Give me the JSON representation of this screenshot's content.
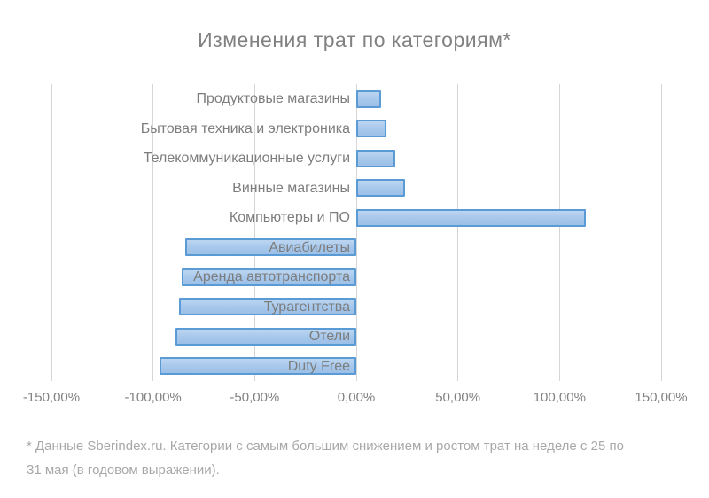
{
  "title": "Изменения трат по категориям*",
  "footnote": "* Данные Sberindex.ru. Категории с самым большим снижением и ростом трат на неделе с 25 по\n31 мая (в годовом выражении).",
  "colors": {
    "bar_fill": "#a9c9ec",
    "bar_border": "#5b9bd5",
    "gridline": "#d6d6d6",
    "title_text": "#818181",
    "label_text": "#7d7d7d",
    "footnote_text": "#a8a8a8",
    "background": "#ffffff"
  },
  "chart_data": {
    "type": "bar",
    "orientation": "horizontal",
    "title": "Изменения трат по категориям*",
    "xlabel": "",
    "ylabel": "",
    "categories": [
      "Продуктовые магазины",
      "Бытовая техника и электроника",
      "Телекоммуникационные услуги",
      "Винные магазины",
      "Компьютеры и ПО",
      "Авиабилеты",
      "Аренда автотранспорта",
      "Турагентства",
      "Отели",
      "Duty Free"
    ],
    "values": [
      12,
      15,
      19,
      24,
      113,
      -84,
      -86,
      -87,
      -89,
      -97
    ],
    "unit": "percent",
    "xlim": [
      -150,
      150
    ],
    "x_tick_values": [
      -150,
      -100,
      -50,
      0,
      50,
      100,
      150
    ],
    "x_tick_labels": [
      "-150,00%",
      "-100,00%",
      "-50,00%",
      "0,00%",
      "50,00%",
      "100,00%",
      "150,00%"
    ],
    "grid": true,
    "legend": false
  }
}
